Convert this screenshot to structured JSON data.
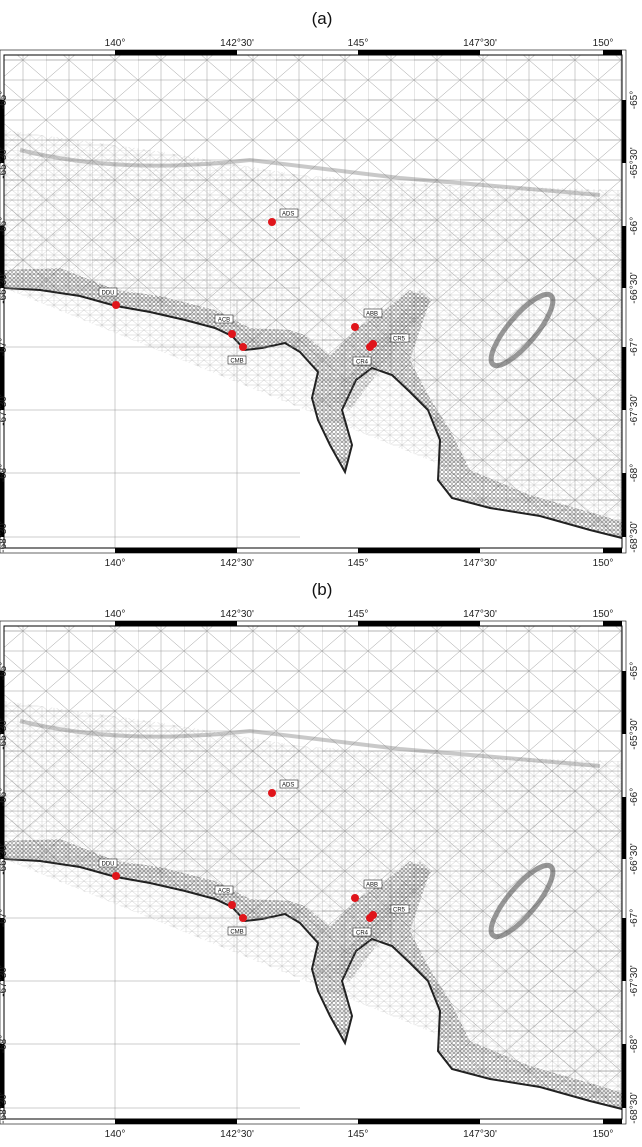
{
  "panels": [
    {
      "label": "(a)",
      "stations": [
        "ADS",
        "DDU",
        "ACB",
        "CMB",
        "ABB",
        "CR5",
        "CR4"
      ]
    },
    {
      "label": "(b)",
      "stations": [
        "ADS",
        "DDU",
        "ACB",
        "CMB",
        "ABB",
        "CR5",
        "CR4"
      ]
    }
  ],
  "lon_labels": [
    "140°",
    "142°30'",
    "145°",
    "147°30'",
    "150°"
  ],
  "lat_labels": [
    "-65°",
    "-65°30'",
    "-66°",
    "-66°30'",
    "-67°",
    "-67°30'",
    "-68°",
    "-68°30'"
  ]
}
